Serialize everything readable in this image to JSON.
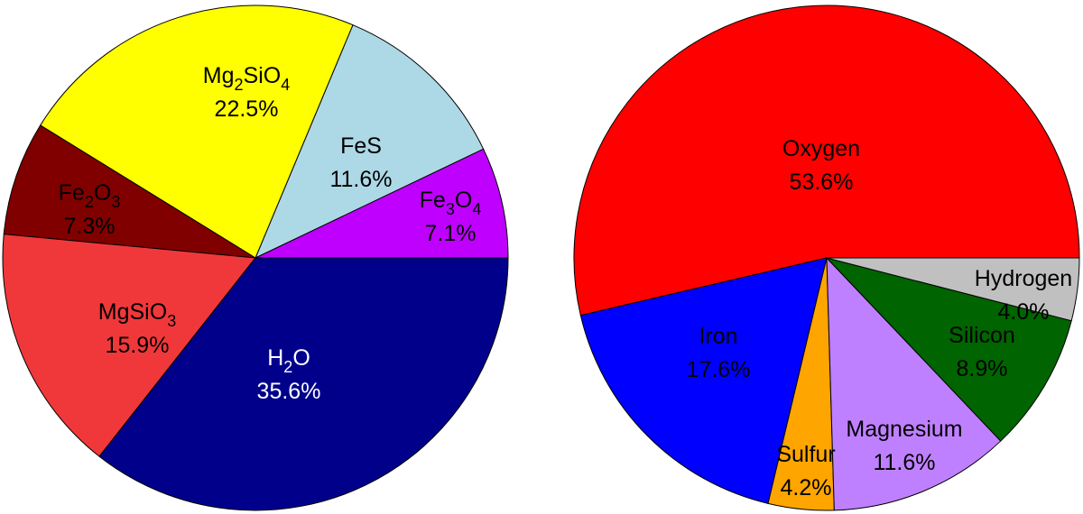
{
  "chart_data": [
    {
      "type": "pie",
      "start_angle_deg": 0,
      "direction": "counterclockwise",
      "slices": [
        {
          "label": "Fe3O4",
          "label_parts": [
            [
              "Fe",
              "3"
            ],
            [
              "O",
              "4"
            ]
          ],
          "value": 7.1,
          "value_label": "7.1%",
          "color": "#bf00ff",
          "text_color": "#000000"
        },
        {
          "label": "FeS",
          "label_parts": [
            [
              "FeS",
              ""
            ]
          ],
          "value": 11.6,
          "value_label": "11.6%",
          "color": "#add8e6",
          "text_color": "#000000"
        },
        {
          "label": "Mg2SiO4",
          "label_parts": [
            [
              "Mg",
              "2"
            ],
            [
              "SiO",
              "4"
            ]
          ],
          "value": 22.5,
          "value_label": "22.5%",
          "color": "#ffff00",
          "text_color": "#000000"
        },
        {
          "label": "Fe2O3",
          "label_parts": [
            [
              "Fe",
              "2"
            ],
            [
              "O",
              "3"
            ]
          ],
          "value": 7.3,
          "value_label": "7.3%",
          "color": "#800000",
          "text_color": "#000000"
        },
        {
          "label": "MgSiO3",
          "label_parts": [
            [
              "MgSiO",
              "3"
            ]
          ],
          "value": 15.9,
          "value_label": "15.9%",
          "color": "#f0383b",
          "text_color": "#000000"
        },
        {
          "label": "H2O",
          "label_parts": [
            [
              "H",
              "2"
            ],
            [
              "O",
              ""
            ]
          ],
          "value": 35.6,
          "value_label": "35.6%",
          "color": "#00008b",
          "text_color": "#ffffff"
        }
      ]
    },
    {
      "type": "pie",
      "start_angle_deg": 0,
      "direction": "counterclockwise",
      "slices": [
        {
          "label": "Oxygen",
          "label_parts": [
            [
              "Oxygen",
              ""
            ]
          ],
          "value": 53.6,
          "value_label": "53.6%",
          "color": "#ff0000",
          "text_color": "#000000"
        },
        {
          "label": "Iron",
          "label_parts": [
            [
              "Iron",
              ""
            ]
          ],
          "value": 17.6,
          "value_label": "17.6%",
          "color": "#0000ff",
          "text_color": "#000000"
        },
        {
          "label": "Sulfur",
          "label_parts": [
            [
              "Sulfur",
              ""
            ]
          ],
          "value": 4.2,
          "value_label": "4.2%",
          "color": "#ffa500",
          "text_color": "#000000"
        },
        {
          "label": "Magnesium",
          "label_parts": [
            [
              "Magnesium",
              ""
            ]
          ],
          "value": 11.6,
          "value_label": "11.6%",
          "color": "#bf80ff",
          "text_color": "#000000"
        },
        {
          "label": "Silicon",
          "label_parts": [
            [
              "Silicon",
              ""
            ]
          ],
          "value": 8.9,
          "value_label": "8.9%",
          "color": "#006400",
          "text_color": "#000000"
        },
        {
          "label": "Hydrogen",
          "label_parts": [
            [
              "Hydrogen",
              ""
            ]
          ],
          "value": 4.0,
          "value_label": "4.0%",
          "color": "#c0c0c0",
          "text_color": "#000000"
        }
      ]
    }
  ]
}
